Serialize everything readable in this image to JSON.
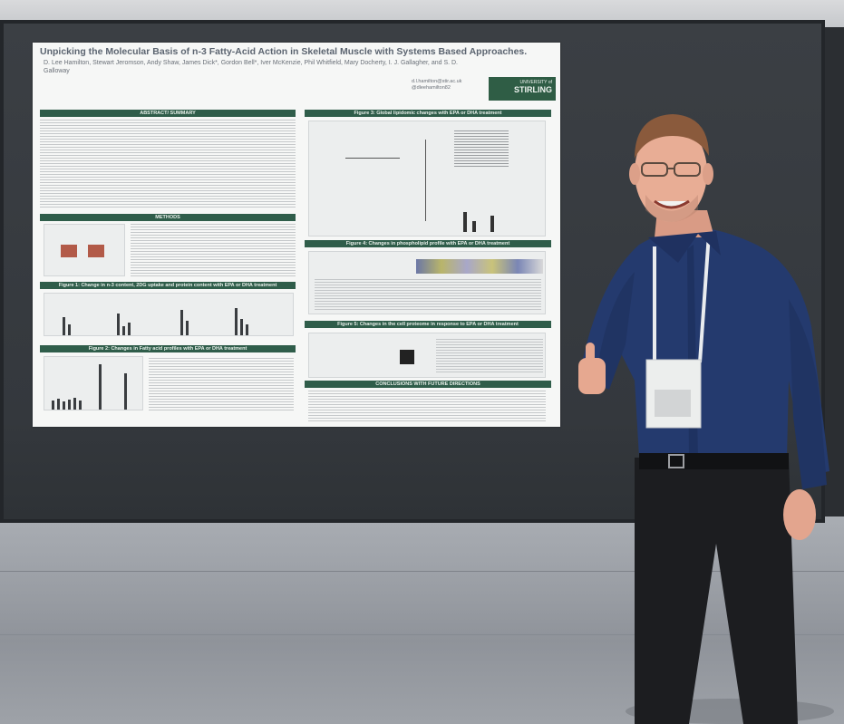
{
  "poster": {
    "title": "Unpicking the Molecular Basis of n-3 Fatty-Acid Action in Skeletal Muscle with Systems Based Approaches.",
    "authors": "D. Lee Hamilton, Stewart Jeromson, Andy Shaw, James Dick*, Gordon Bell*, Iver McKenzie, Phil Whitfield, Mary Docherty, I. J. Gallagher, and S. D. Galloway",
    "contact": [
      "d.l.hamilton@stir.ac.uk",
      "@dleehamilton82"
    ],
    "logo": {
      "line1": "UNIVERSITY of",
      "line2": "STIRLING"
    },
    "sections": {
      "abstract": "ABSTRACT/ SUMMARY",
      "methods": "METHODS",
      "fig1": "Figure 1: Change in n-3 content, 2DG uptake and protein content with EPA or DHA treatment",
      "fig2": "Figure 2: Changes in Fatty acid profiles with EPA or DHA treatment",
      "fig3": "Figure 3: Global lipidomic changes with EPA or DHA treatment",
      "fig4": "Figure 4: Changes in phospholipid profile with EPA or DHA treatment",
      "fig5": "Figure 5: Changes in the cell proteome in response to EPA or DHA treatment",
      "conclusions": "CONCLUSIONS WITH FUTURE DIRECTIONS"
    }
  },
  "colors": {
    "poster_header": "#2f5d4a",
    "board": "#34383d",
    "shirt": "#243a6e",
    "trousers": "#1c1d20"
  }
}
